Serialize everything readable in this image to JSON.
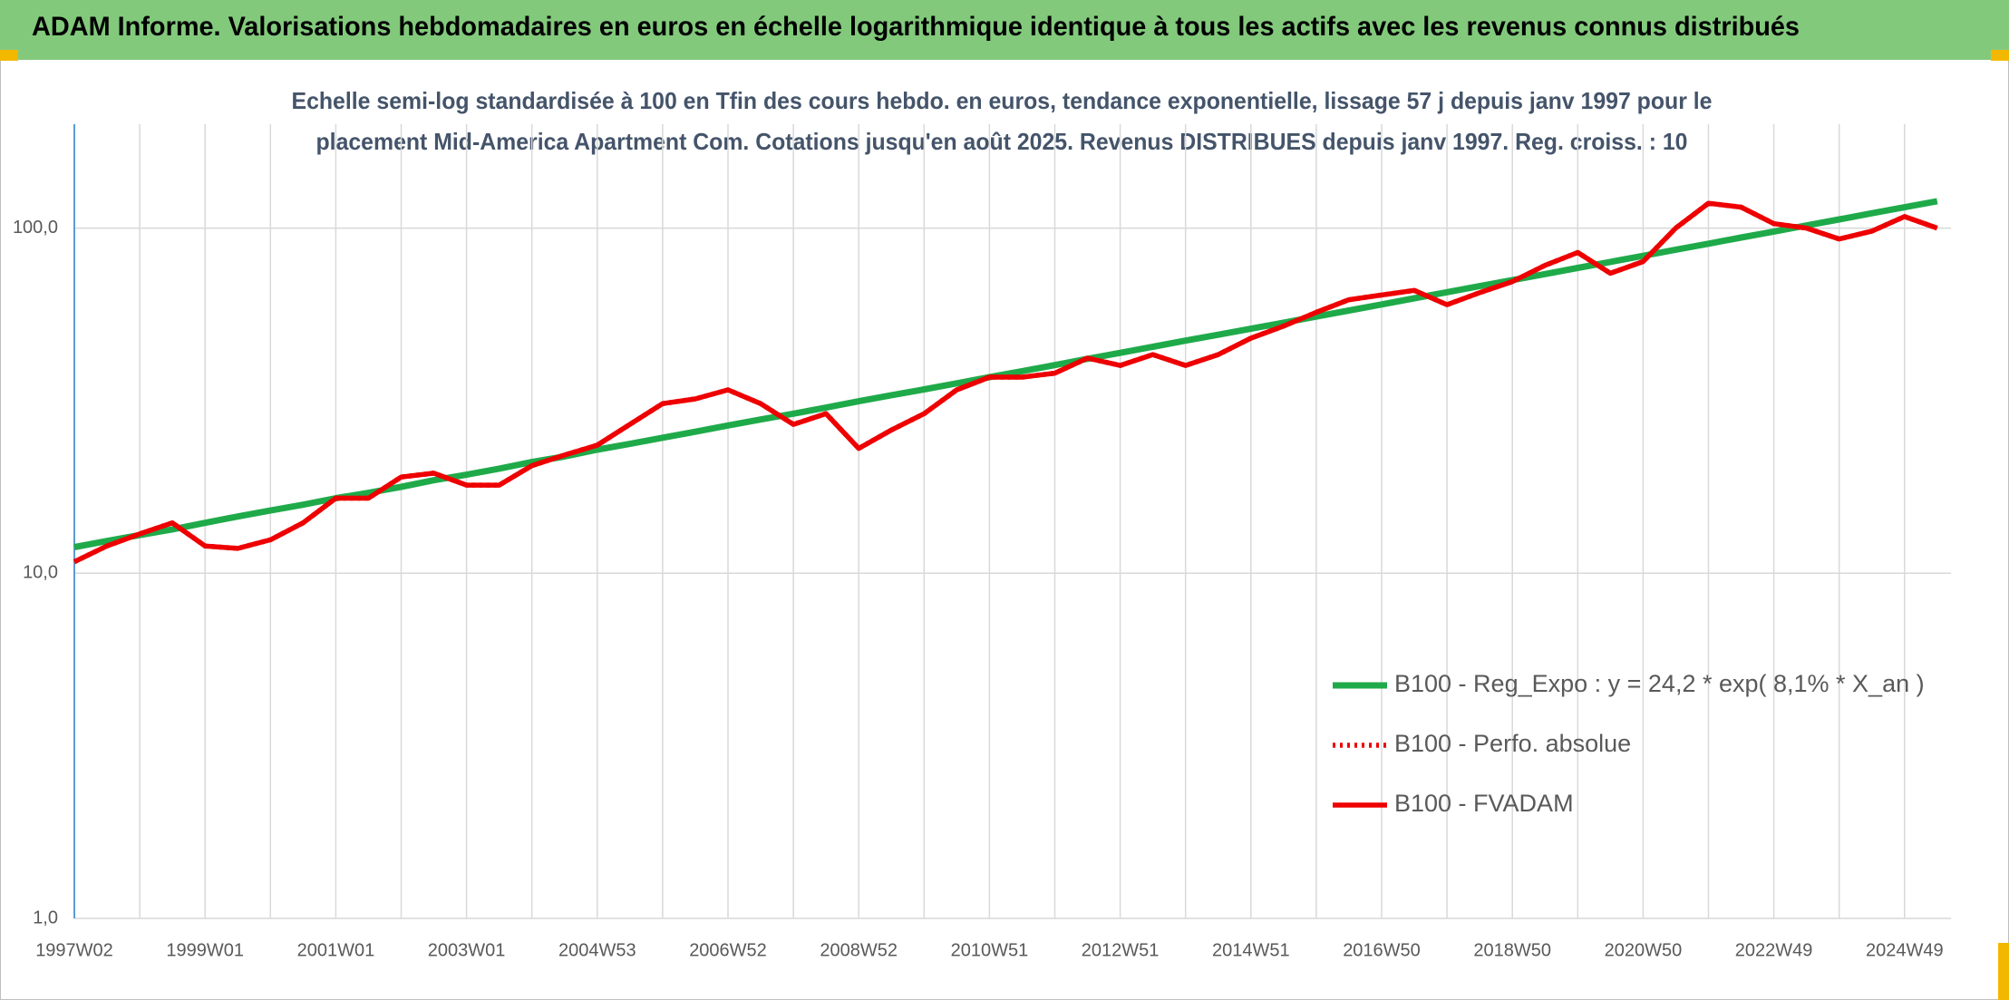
{
  "chart_data": {
    "type": "line",
    "title": "ADAM Informe. Valorisations hebdomadaires en euros en échelle logarithmique identique à tous les actifs avec les revenus connus distribués",
    "subtitle": [
      "Echelle semi-log standardisée à 100 en Tfin des cours hebdo. en euros, tendance exponentielle, lissage 57 j depuis janv 1997 pour le",
      "placement Mid-America Apartment Com. Cotations jusqu'en août 2025. Revenus DISTRIBUES depuis janv 1997. Reg. croiss. : 10"
    ],
    "categories": [
      "1997W02",
      null,
      null,
      null,
      "1999W01",
      null,
      null,
      null,
      "2001W01",
      null,
      null,
      null,
      "2003W01",
      null,
      null,
      null,
      "2004W53",
      null,
      null,
      null,
      "2006W52",
      null,
      null,
      null,
      "2008W52",
      null,
      null,
      null,
      "2010W51",
      null,
      null,
      null,
      "2012W51",
      null,
      null,
      null,
      "2014W51",
      null,
      null,
      null,
      "2016W50",
      null,
      null,
      null,
      "2018W50",
      null,
      null,
      null,
      "2020W50",
      null,
      null,
      null,
      "2022W49",
      null,
      null,
      null,
      "2024W49",
      null
    ],
    "series": [
      {
        "name": "B100 - Reg_Expo : y = 24,2 * exp( 8,1% *  X_an )",
        "color": "#1faa4a",
        "style": "solid",
        "values": [
          11.9,
          12.4,
          12.9,
          13.4,
          14,
          14.6,
          15.2,
          15.8,
          16.5,
          17.1,
          17.8,
          18.6,
          19.3,
          20.1,
          21,
          21.8,
          22.8,
          23.7,
          24.7,
          25.7,
          26.8,
          27.9,
          29,
          30.2,
          31.5,
          32.8,
          34.1,
          35.5,
          37,
          38.5,
          40.1,
          41.8,
          43.5,
          45.3,
          47.2,
          49.1,
          51.1,
          53.2,
          55.4,
          57.7,
          60.1,
          62.6,
          65.2,
          67.9,
          70.7,
          73.6,
          76.7,
          79.8,
          83.1,
          86.6,
          90.1,
          93.9,
          97.7,
          101.8,
          106,
          110.4,
          114.9,
          119.7
        ]
      },
      {
        "name": "B100 - Perfo. absolue",
        "color": "#ee0000",
        "style": "dotted",
        "values": [
          10.8,
          12,
          13,
          14,
          12,
          11.8,
          12.5,
          14,
          16.5,
          16.5,
          19,
          19.5,
          18,
          18,
          20.5,
          22,
          23.5,
          27,
          31,
          32,
          34,
          31,
          27,
          29,
          23,
          26,
          29,
          34,
          37,
          37,
          38,
          42,
          40,
          43,
          40,
          43,
          48,
          52,
          57,
          62,
          64,
          66,
          60,
          65,
          70,
          78,
          85,
          74,
          80,
          100,
          118,
          115,
          103,
          100,
          93,
          98,
          108,
          100
        ]
      },
      {
        "name": "B100 - FVADAM",
        "color": "#ee0000",
        "style": "solid",
        "values": [
          10.8,
          12,
          13,
          14,
          12,
          11.8,
          12.5,
          14,
          16.5,
          16.5,
          19,
          19.5,
          18,
          18,
          20.5,
          22,
          23.5,
          27,
          31,
          32,
          34,
          31,
          27,
          29,
          23,
          26,
          29,
          34,
          37,
          37,
          38,
          42,
          40,
          43,
          40,
          43,
          48,
          52,
          57,
          62,
          64,
          66,
          60,
          65,
          70,
          78,
          85,
          74,
          80,
          100,
          118,
          115,
          103,
          100,
          93,
          98,
          108,
          100
        ]
      }
    ],
    "ylim": [
      1,
      200
    ],
    "ylog": true,
    "yticks": [
      {
        "value": 1,
        "label": "1,0"
      },
      {
        "value": 10,
        "label": "10,0"
      },
      {
        "value": 100,
        "label": "100,0"
      }
    ],
    "grid": true,
    "legend": "lower right"
  }
}
